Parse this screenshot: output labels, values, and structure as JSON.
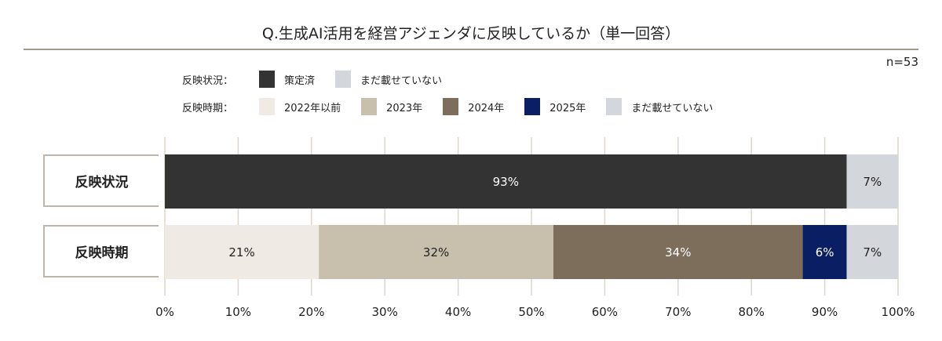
{
  "title": "Q.生成AI活用を経営アジェンダに反映しているか（単一回答）",
  "n_label": "n=53",
  "legend": [
    {
      "label": "反映状況：",
      "items": [
        {
          "name": "策定済",
          "color": "#333333"
        },
        {
          "name": "まだ載せていない",
          "color": "#d3d7db"
        }
      ]
    },
    {
      "label": "反映時期：",
      "items": [
        {
          "name": "2022年以前",
          "color": "#efebe4"
        },
        {
          "name": "2023年",
          "color": "#c8bfac"
        },
        {
          "name": "2024年",
          "color": "#7d6e5b"
        },
        {
          "name": "2025年",
          "color": "#0a1f63"
        },
        {
          "name": "まだ載せていない",
          "color": "#d3d7db"
        }
      ]
    }
  ],
  "chart_data": {
    "type": "bar",
    "orientation": "horizontal-stacked-100",
    "categories": [
      "反映状況",
      "反映時期"
    ],
    "xlim": [
      0,
      100
    ],
    "x_ticks": [
      "0%",
      "10%",
      "20%",
      "30%",
      "40%",
      "50%",
      "60%",
      "70%",
      "80%",
      "90%",
      "100%"
    ],
    "grid": true,
    "legend_position": "top-left",
    "rows": [
      {
        "category": "反映状況",
        "segments": [
          {
            "series": "策定済",
            "value": 93,
            "label": "93%",
            "color": "#333333",
            "text_color": "#ffffff"
          },
          {
            "series": "まだ載せていない",
            "value": 7,
            "label": "7%",
            "color": "#d3d7db",
            "text_color": "#222222"
          }
        ]
      },
      {
        "category": "反映時期",
        "segments": [
          {
            "series": "2022年以前",
            "value": 21,
            "label": "21%",
            "color": "#efebe4",
            "text_color": "#222222"
          },
          {
            "series": "2023年",
            "value": 32,
            "label": "32%",
            "color": "#c8bfac",
            "text_color": "#222222"
          },
          {
            "series": "2024年",
            "value": 34,
            "label": "34%",
            "color": "#7d6e5b",
            "text_color": "#ffffff"
          },
          {
            "series": "2025年",
            "value": 6,
            "label": "6%",
            "color": "#0a1f63",
            "text_color": "#ffffff"
          },
          {
            "series": "まだ載せていない",
            "value": 7,
            "label": "7%",
            "color": "#d3d7db",
            "text_color": "#222222"
          }
        ]
      }
    ]
  }
}
